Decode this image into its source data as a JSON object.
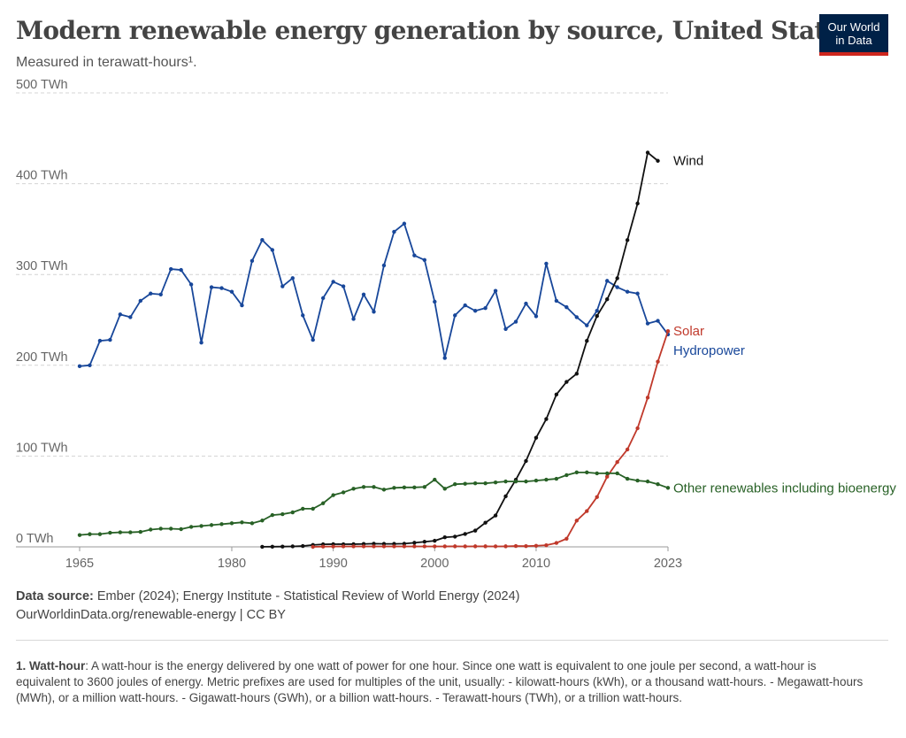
{
  "header": {
    "title": "Modern renewable energy generation by source, United States",
    "subtitle": "Measured in terawatt-hours¹.",
    "logo_line1": "Our World",
    "logo_line2": "in Data"
  },
  "footer": {
    "source_label": "Data source:",
    "source_text": "Ember (2024); Energy Institute - Statistical Review of World Energy (2024)",
    "url_line": "OurWorldinData.org/renewable-energy | CC BY"
  },
  "note": {
    "label": "1. Watt-hour",
    "text": ": A watt-hour is the energy delivered by one watt of power for one hour. Since one watt is equivalent to one joule per second, a watt-hour is equivalent to 3600 joules of energy. Metric prefixes are used for multiples of the unit, usually: - kilowatt-hours (kWh), or a thousand watt-hours. - Megawatt-hours (MWh), or a million watt-hours. - Gigawatt-hours (GWh), or a billion watt-hours. - Terawatt-hours (TWh), or a trillion watt-hours."
  },
  "chart_data": {
    "type": "line",
    "title": "Modern renewable energy generation by source, United States",
    "subtitle": "Measured in terawatt-hours¹.",
    "ylim": [
      0,
      500
    ],
    "xlim": [
      1965,
      2023
    ],
    "y_ticks": [
      {
        "value": 0,
        "label": "0 TWh"
      },
      {
        "value": 100,
        "label": "100 TWh"
      },
      {
        "value": 200,
        "label": "200 TWh"
      },
      {
        "value": 300,
        "label": "300 TWh"
      },
      {
        "value": 400,
        "label": "400 TWh"
      },
      {
        "value": 500,
        "label": "500 TWh"
      }
    ],
    "x_ticks": [
      {
        "value": 1965,
        "label": "1965"
      },
      {
        "value": 1980,
        "label": "1980"
      },
      {
        "value": 1990,
        "label": "1990"
      },
      {
        "value": 2000,
        "label": "2000"
      },
      {
        "value": 2010,
        "label": "2010"
      },
      {
        "value": 2023,
        "label": "2023"
      }
    ],
    "grid": "horizontal dashed",
    "series": [
      {
        "name": "Hydropower",
        "color": "#18479a",
        "start_year": 1965,
        "values": [
          199,
          200,
          227,
          228,
          256,
          253,
          271,
          279,
          278,
          306,
          305,
          289,
          225,
          286,
          285,
          281,
          266,
          315,
          338,
          327,
          287,
          296,
          255,
          228,
          274,
          292,
          287,
          251,
          278,
          259,
          310,
          347,
          356,
          321,
          316,
          270,
          208,
          255,
          266,
          260,
          263,
          282,
          240,
          248,
          268,
          254,
          312,
          271,
          264,
          253,
          244,
          260,
          293,
          286,
          281,
          279,
          246,
          249,
          234
        ]
      },
      {
        "name": "Wind",
        "color": "#111111",
        "start_year": 1983,
        "values": [
          0.1,
          0.2,
          0.3,
          0.5,
          0.9,
          2.1,
          2.8,
          3,
          2.9,
          3,
          3.2,
          3.5,
          3.3,
          3.3,
          3.5,
          4.5,
          5.6,
          6.7,
          10.5,
          11.3,
          14.2,
          17.9,
          26.6,
          34.5,
          55.7,
          73.9,
          94.6,
          120.2,
          140.8,
          167.8,
          181.7,
          190.7,
          226.9,
          254.3,
          272.7,
          295.9,
          337.9,
          378.2,
          434.3,
          425.2
        ]
      },
      {
        "name": "Solar",
        "color": "#c0392b",
        "start_year": 1988,
        "values": [
          0.01,
          0.3,
          0.4,
          0.5,
          0.5,
          0.5,
          0.5,
          0.5,
          0.5,
          0.5,
          0.5,
          0.5,
          0.5,
          0.5,
          0.6,
          0.5,
          0.6,
          0.6,
          0.5,
          0.6,
          0.9,
          0.8,
          1.2,
          1.8,
          4.3,
          9.0,
          28.9,
          39.4,
          54.9,
          77.3,
          93.4,
          107.3,
          130.7,
          164.4,
          204.0,
          237.6
        ]
      },
      {
        "name": "Other renewables including bioenergy",
        "color": "#286126",
        "start_year": 1965,
        "values": [
          13,
          14,
          14,
          15.5,
          16,
          16,
          16.5,
          19,
          20,
          20,
          19.5,
          22,
          23,
          24,
          25,
          26,
          27,
          26,
          29,
          35,
          36,
          38,
          42,
          42,
          48,
          57,
          60,
          64,
          66,
          66,
          63,
          65,
          65.5,
          65.5,
          66,
          74,
          64,
          69,
          69.5,
          70,
          70,
          71,
          72,
          72,
          72,
          73,
          74,
          75,
          79,
          82,
          82,
          81,
          81,
          81,
          75,
          73,
          72,
          69,
          65
        ]
      }
    ]
  }
}
